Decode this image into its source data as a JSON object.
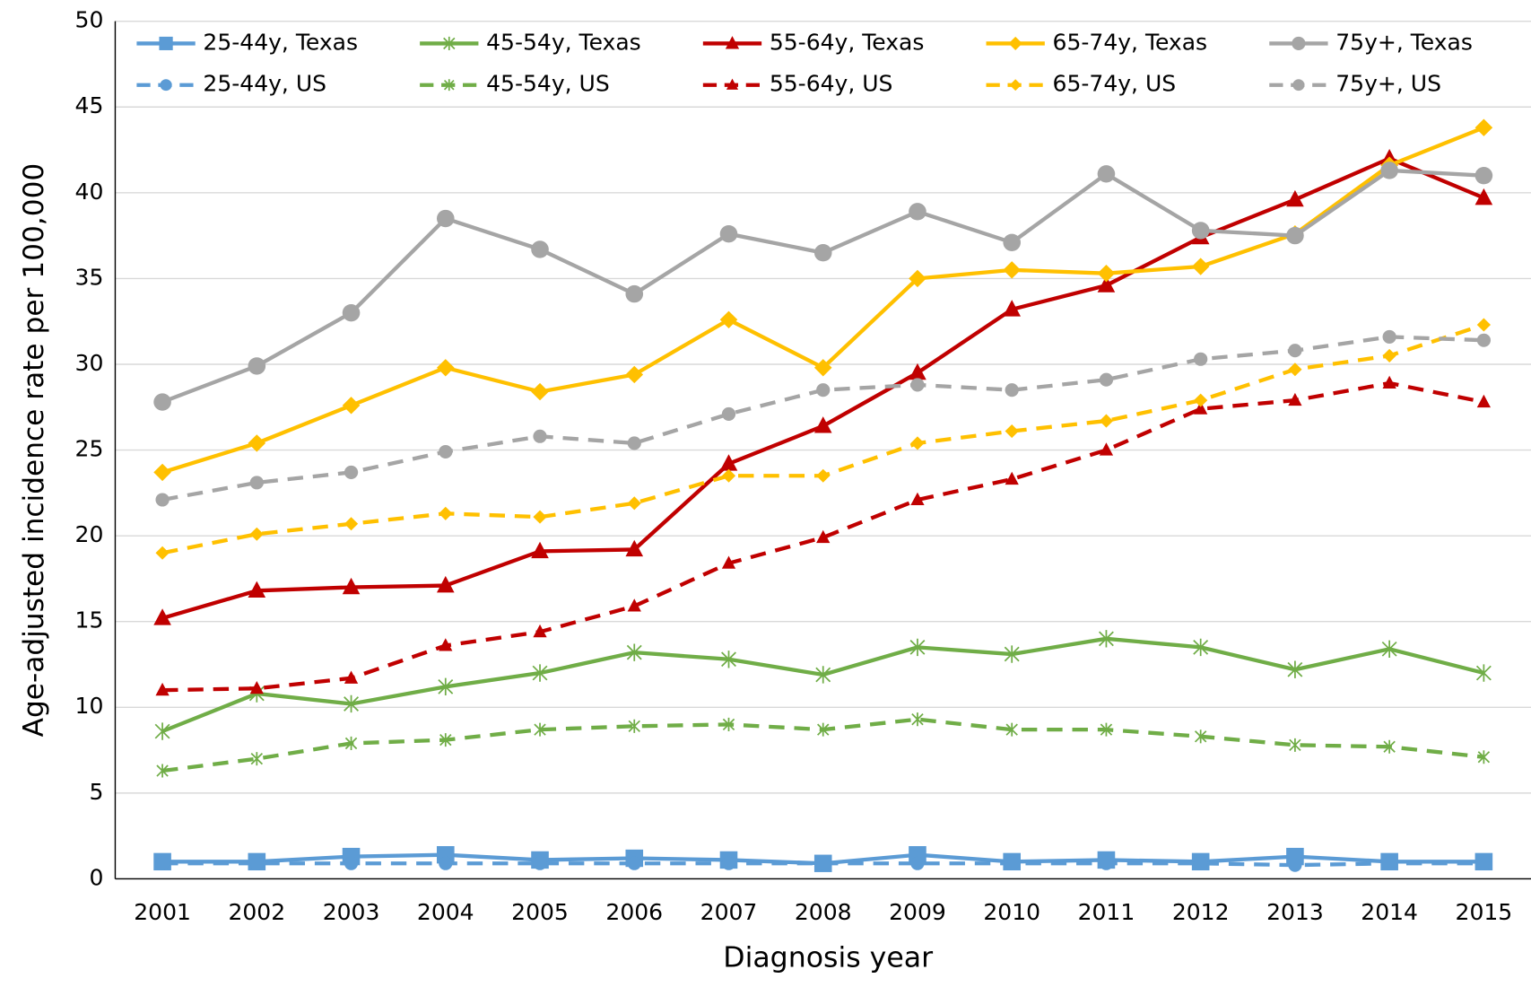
{
  "chart_data": {
    "type": "line",
    "x_label": "Diagnosis year",
    "y_label": "Age-adjusted incidence rate per 100,000",
    "categories": [
      "2001",
      "2002",
      "2003",
      "2004",
      "2005",
      "2006",
      "2007",
      "2008",
      "2009",
      "2010",
      "2011",
      "2012",
      "2013",
      "2014",
      "2015"
    ],
    "ylim": [
      0,
      50
    ],
    "yticks": [
      0,
      5,
      10,
      15,
      20,
      25,
      30,
      35,
      40,
      45,
      50
    ],
    "grid": true,
    "series": [
      {
        "name": "25-44y, Texas",
        "color": "#5b9bd5",
        "marker": "square",
        "dashed": false,
        "values": [
          1.0,
          1.0,
          1.3,
          1.4,
          1.1,
          1.2,
          1.1,
          0.9,
          1.4,
          1.0,
          1.1,
          1.0,
          1.3,
          1.0,
          1.0
        ]
      },
      {
        "name": "45-54y, Texas",
        "color": "#70ad47",
        "marker": "star",
        "dashed": false,
        "values": [
          8.6,
          10.8,
          10.2,
          11.2,
          12.0,
          13.2,
          12.8,
          11.9,
          13.5,
          13.1,
          14.0,
          13.5,
          12.2,
          13.4,
          12.0
        ]
      },
      {
        "name": "55-64y, Texas",
        "color": "#c00000",
        "marker": "triangle",
        "dashed": false,
        "values": [
          15.2,
          16.8,
          17.0,
          17.1,
          19.1,
          19.2,
          24.2,
          26.4,
          29.5,
          33.2,
          34.6,
          37.4,
          39.6,
          42.0,
          39.7
        ]
      },
      {
        "name": "65-74y, Texas",
        "color": "#ffc000",
        "marker": "diamond",
        "dashed": false,
        "values": [
          23.7,
          25.4,
          27.6,
          29.8,
          28.4,
          29.4,
          32.6,
          29.8,
          35.0,
          35.5,
          35.3,
          35.7,
          37.6,
          41.6,
          43.8
        ]
      },
      {
        "name": "75y+, Texas",
        "color": "#a5a5a5",
        "marker": "circle",
        "dashed": false,
        "values": [
          27.8,
          29.9,
          33.0,
          38.5,
          36.7,
          34.1,
          37.6,
          36.5,
          38.9,
          37.1,
          41.1,
          37.8,
          37.5,
          41.3,
          41.0
        ]
      },
      {
        "name": "25-44y, US",
        "color": "#5b9bd5",
        "marker": "circle",
        "dashed": true,
        "values": [
          0.9,
          0.9,
          0.9,
          0.9,
          0.9,
          0.9,
          0.9,
          0.9,
          0.9,
          0.9,
          0.9,
          0.9,
          0.8,
          0.9,
          0.9
        ]
      },
      {
        "name": "45-54y, US",
        "color": "#70ad47",
        "marker": "star",
        "dashed": true,
        "values": [
          6.3,
          7.0,
          7.9,
          8.1,
          8.7,
          8.9,
          9.0,
          8.7,
          9.3,
          8.7,
          8.7,
          8.3,
          7.8,
          7.7,
          7.1
        ]
      },
      {
        "name": "55-64y, US",
        "color": "#c00000",
        "marker": "triangle",
        "dashed": true,
        "values": [
          11.0,
          11.1,
          11.7,
          13.6,
          14.4,
          15.9,
          18.4,
          19.9,
          22.1,
          23.3,
          25.0,
          27.4,
          27.9,
          28.9,
          27.8
        ]
      },
      {
        "name": "65-74y, US",
        "color": "#ffc000",
        "marker": "diamond",
        "dashed": true,
        "values": [
          19.0,
          20.1,
          20.7,
          21.3,
          21.1,
          21.9,
          23.5,
          23.5,
          25.4,
          26.1,
          26.7,
          27.9,
          29.7,
          30.5,
          32.3
        ]
      },
      {
        "name": "75y+, US",
        "color": "#a5a5a5",
        "marker": "circle",
        "dashed": true,
        "values": [
          22.1,
          23.1,
          23.7,
          24.9,
          25.8,
          25.4,
          27.1,
          28.5,
          28.8,
          28.5,
          29.1,
          30.3,
          30.8,
          31.6,
          31.4
        ]
      }
    ]
  }
}
